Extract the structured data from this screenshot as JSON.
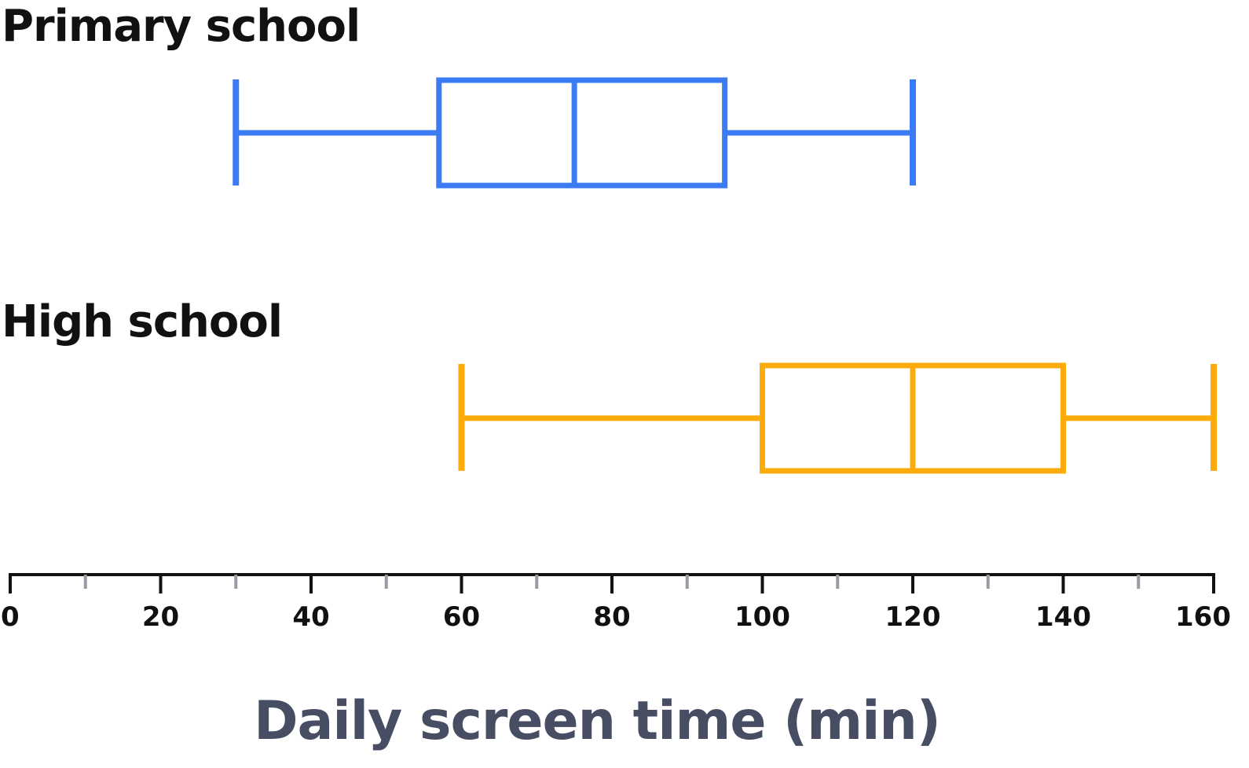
{
  "chart_data": {
    "type": "boxplot",
    "xlabel": "Daily screen time (min)",
    "xlim": [
      0,
      160
    ],
    "major_ticks": [
      0,
      20,
      40,
      60,
      80,
      100,
      120,
      140,
      160
    ],
    "minor_ticks": [
      10,
      30,
      50,
      70,
      90,
      110,
      130,
      150
    ],
    "grid": false,
    "series": [
      {
        "name": "Primary school",
        "color": "#3b7cf5",
        "min": 30,
        "q1": 57,
        "median": 75,
        "q3": 95,
        "max": 120
      },
      {
        "name": "High school",
        "color": "#fdab0b",
        "min": 60,
        "q1": 100,
        "median": 120,
        "q3": 140,
        "max": 160
      }
    ],
    "axis_color": "#111111",
    "minor_tick_color": "#9a9aa4",
    "xlabel_color": "#474d62"
  }
}
